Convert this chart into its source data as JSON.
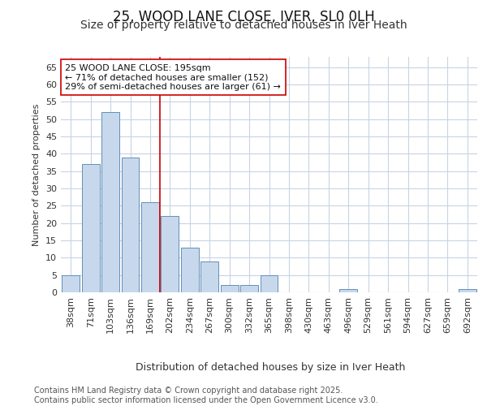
{
  "title1": "25, WOOD LANE CLOSE, IVER, SL0 0LH",
  "title2": "Size of property relative to detached houses in Iver Heath",
  "xlabel": "Distribution of detached houses by size in Iver Heath",
  "ylabel": "Number of detached properties",
  "categories": [
    "38sqm",
    "71sqm",
    "103sqm",
    "136sqm",
    "169sqm",
    "202sqm",
    "234sqm",
    "267sqm",
    "300sqm",
    "332sqm",
    "365sqm",
    "398sqm",
    "430sqm",
    "463sqm",
    "496sqm",
    "529sqm",
    "561sqm",
    "594sqm",
    "627sqm",
    "659sqm",
    "692sqm"
  ],
  "values": [
    5,
    37,
    52,
    39,
    26,
    22,
    13,
    9,
    2,
    2,
    5,
    0,
    0,
    0,
    1,
    0,
    0,
    0,
    0,
    0,
    1
  ],
  "bar_color": "#c8d8ec",
  "bar_edge_color": "#6090b8",
  "bar_edge_width": 0.7,
  "vline_x_index": 5,
  "vline_color": "#cc0000",
  "annotation_text": "25 WOOD LANE CLOSE: 195sqm\n← 71% of detached houses are smaller (152)\n29% of semi-detached houses are larger (61) →",
  "annotation_box_facecolor": "#ffffff",
  "annotation_box_edgecolor": "#cc0000",
  "background_color": "#ffffff",
  "plot_bg_color": "#ffffff",
  "grid_color": "#c8d4e4",
  "ylim": [
    0,
    68
  ],
  "yticks": [
    0,
    5,
    10,
    15,
    20,
    25,
    30,
    35,
    40,
    45,
    50,
    55,
    60,
    65
  ],
  "footer": "Contains HM Land Registry data © Crown copyright and database right 2025.\nContains public sector information licensed under the Open Government Licence v3.0.",
  "title1_fontsize": 12,
  "title2_fontsize": 10,
  "xlabel_fontsize": 9,
  "ylabel_fontsize": 8,
  "tick_fontsize": 8,
  "annotation_fontsize": 8,
  "footer_fontsize": 7
}
